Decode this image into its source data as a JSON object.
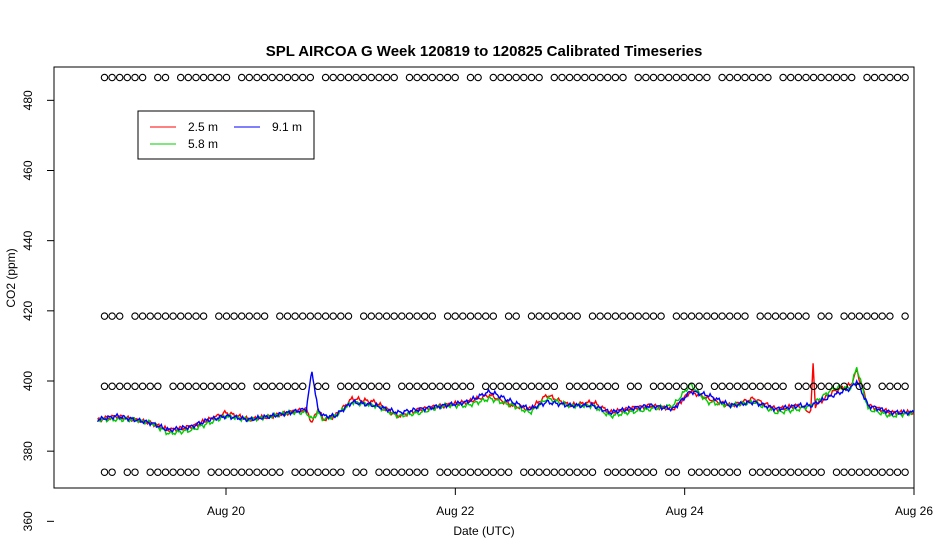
{
  "chart_data": {
    "type": "line",
    "title": "SPL AIRCOA G  Week 120819 to 120825  Calibrated Timeseries",
    "xlabel": "Date (UTC)",
    "ylabel": "CO2 (ppm)",
    "xlim": [
      -0.5,
      7.0
    ],
    "ylim": [
      369.5,
      489.5
    ],
    "x_ticks": [
      {
        "value": 1,
        "label": "Aug 20"
      },
      {
        "value": 3,
        "label": "Aug 22"
      },
      {
        "value": 5,
        "label": "Aug 24"
      },
      {
        "value": 7,
        "label": "Aug 26"
      }
    ],
    "y_ticks": [
      360,
      380,
      400,
      420,
      440,
      460,
      480
    ],
    "legend": {
      "placement": "top-left",
      "entries": [
        {
          "name": "2.5 m",
          "color": "#ff0000"
        },
        {
          "name": "5.8 m",
          "color": "#00cd00"
        },
        {
          "name": "9.1 m",
          "color": "#0000ff"
        }
      ]
    },
    "calibration_levels": [
      486.5,
      418.5,
      398.5,
      374.0
    ],
    "calibration_marker": "o",
    "grid": false,
    "series": [
      {
        "name": "2.5 m",
        "color": "#ff0000",
        "x": [
          -0.12,
          0.05,
          0.2,
          0.35,
          0.5,
          0.7,
          0.85,
          1.0,
          1.2,
          1.4,
          1.55,
          1.7,
          1.75,
          1.8,
          1.85,
          1.95,
          2.1,
          2.3,
          2.5,
          2.7,
          2.9,
          3.1,
          3.3,
          3.5,
          3.65,
          3.8,
          4.0,
          4.2,
          4.35,
          4.5,
          4.7,
          4.9,
          5.05,
          5.2,
          5.4,
          5.6,
          5.8,
          6.0,
          6.1,
          6.12,
          6.14,
          6.3,
          6.45,
          6.5,
          6.6,
          6.8,
          7.0
        ],
        "y": [
          389,
          390,
          389,
          388,
          386,
          387,
          389,
          391,
          389,
          390,
          391,
          392,
          388,
          392,
          389,
          390,
          395,
          394,
          390,
          392,
          393,
          394,
          396,
          393,
          392,
          396,
          393,
          394,
          391,
          392,
          393,
          392,
          397,
          395,
          393,
          395,
          392,
          393,
          391,
          405,
          393,
          397,
          399,
          403,
          393,
          391,
          391
        ]
      },
      {
        "name": "5.8 m",
        "color": "#00cd00",
        "x": [
          -0.12,
          0.05,
          0.2,
          0.35,
          0.5,
          0.7,
          0.85,
          1.0,
          1.2,
          1.4,
          1.55,
          1.7,
          1.75,
          1.8,
          1.85,
          1.95,
          2.1,
          2.3,
          2.5,
          2.7,
          2.9,
          3.1,
          3.3,
          3.5,
          3.65,
          3.8,
          4.0,
          4.2,
          4.35,
          4.5,
          4.7,
          4.9,
          5.05,
          5.2,
          5.4,
          5.6,
          5.8,
          6.0,
          6.1,
          6.3,
          6.45,
          6.5,
          6.6,
          6.8,
          7.0
        ],
        "y": [
          389,
          389,
          389,
          388,
          385,
          386,
          388,
          390,
          389,
          390,
          391,
          391,
          389,
          391,
          389,
          390,
          394,
          393,
          390,
          391,
          393,
          393,
          395,
          393,
          391,
          395,
          393,
          393,
          390,
          391,
          392,
          393,
          399,
          394,
          393,
          394,
          391,
          392,
          393,
          398,
          398,
          404,
          392,
          390,
          391
        ]
      },
      {
        "name": "9.1 m",
        "color": "#0000ff",
        "x": [
          -0.12,
          0.05,
          0.2,
          0.35,
          0.5,
          0.7,
          0.85,
          1.0,
          1.2,
          1.4,
          1.55,
          1.7,
          1.75,
          1.8,
          1.85,
          1.95,
          2.1,
          2.3,
          2.5,
          2.7,
          2.9,
          3.1,
          3.3,
          3.5,
          3.65,
          3.8,
          4.0,
          4.2,
          4.35,
          4.5,
          4.7,
          4.9,
          5.05,
          5.2,
          5.4,
          5.6,
          5.8,
          6.0,
          6.1,
          6.3,
          6.45,
          6.5,
          6.6,
          6.8,
          7.0
        ],
        "y": [
          389,
          390,
          389,
          388,
          386,
          387,
          389,
          390,
          389,
          390,
          391,
          392,
          403,
          392,
          390,
          390,
          394,
          393,
          391,
          392,
          393,
          394,
          397,
          394,
          392,
          394,
          393,
          393,
          391,
          392,
          393,
          392,
          397,
          396,
          393,
          394,
          392,
          393,
          393,
          396,
          398,
          400,
          393,
          391,
          391
        ]
      }
    ]
  }
}
